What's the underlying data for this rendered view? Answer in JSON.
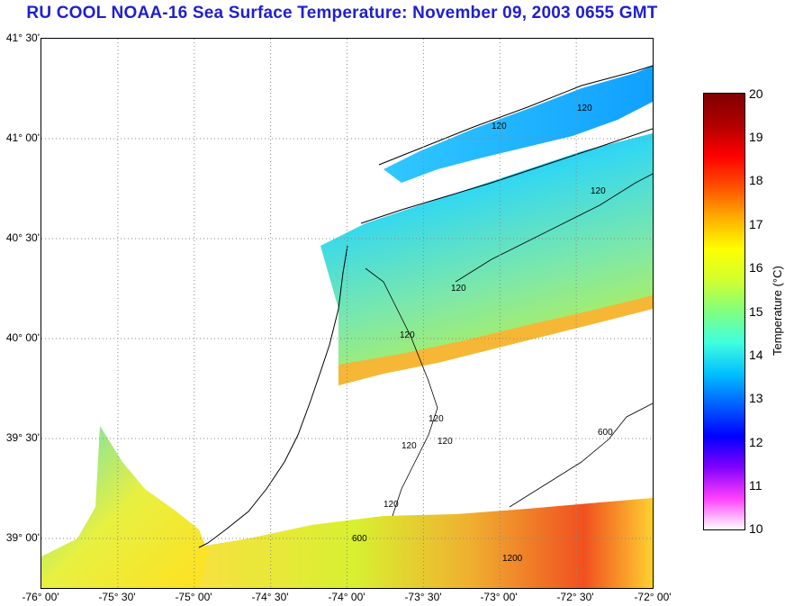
{
  "title": "RU COOL  NOAA-16  Sea Surface Temperature:  November 09, 2003 0655 GMT",
  "map": {
    "lat_labels": [
      "41° 30'",
      "41° 00'",
      "40° 30'",
      "40° 00'",
      "39° 30'",
      "39° 00'"
    ],
    "lon_labels": [
      "-76° 00'",
      "-75° 30'",
      "-75° 00'",
      "-74° 30'",
      "-74° 00'",
      "-73° 30'",
      "-73° 00'",
      "-72° 30'",
      "-72° 00'"
    ],
    "contour_labels": [
      "120",
      "120",
      "120",
      "120",
      "120",
      "120",
      "120",
      "120",
      "120",
      "600",
      "600",
      "1200"
    ]
  },
  "colorbar": {
    "title": "Temperature (°C)",
    "ticks": [
      "20",
      "19",
      "18",
      "17",
      "16",
      "15",
      "14",
      "13",
      "12",
      "11",
      "10"
    ],
    "range": [
      10,
      20
    ],
    "colors": [
      "#ffffff",
      "#ff40ff",
      "#8000ff",
      "#0000ff",
      "#0060ff",
      "#00c0ff",
      "#40ffe0",
      "#80ff80",
      "#d0ff30",
      "#ffff00",
      "#ffb000",
      "#ff5000",
      "#ff0000",
      "#b00000",
      "#800000"
    ]
  }
}
